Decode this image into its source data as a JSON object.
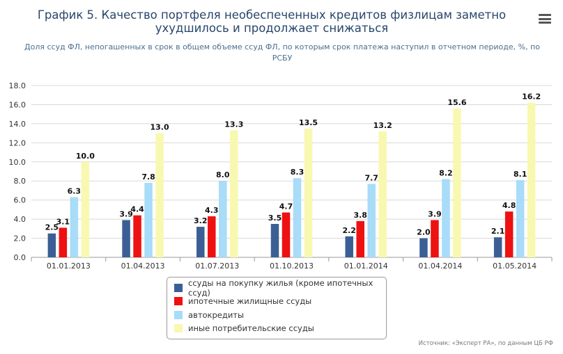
{
  "title": "График 5. Качество портфеля необеспеченных кредитов физлицам заметно ухудшилось и продолжает снижаться",
  "subtitle": "Доля ссуд ФЛ, непогашенных в срок в общем объеме ссуд ФЛ, по которым срок платежа наступил в отчетном периоде, %, по РСБУ",
  "menu_icon": "hamburger-menu-icon",
  "credit": "Источник: «Эксперт РА», по данным ЦБ РФ",
  "chart_data": {
    "type": "bar",
    "title": "",
    "xlabel": "",
    "ylabel": "",
    "ylim": [
      0,
      18
    ],
    "yticks": [
      "0.0",
      "2.0",
      "4.0",
      "6.0",
      "8.0",
      "10.0",
      "12.0",
      "14.0",
      "16.0",
      "18.0"
    ],
    "grid": true,
    "legend_position": "bottom",
    "categories": [
      "01.01.2013",
      "01.04.2013",
      "01.07.2013",
      "01.10.2013",
      "01.01.2014",
      "01.04.2014",
      "01.05.2014"
    ],
    "series": [
      {
        "name": "ссуды на покупку жилья (кроме ипотечных ссуд)",
        "color": "#3b5f95",
        "values": [
          2.5,
          3.9,
          3.2,
          3.5,
          2.2,
          2.0,
          2.1
        ],
        "labels": [
          "2.5",
          "3.9",
          "3.2",
          "3.5",
          "2.2",
          "2.0",
          "2.1"
        ]
      },
      {
        "name": "ипотечные жилищные ссуды",
        "color": "#ee1111",
        "values": [
          3.1,
          4.4,
          4.3,
          4.7,
          3.8,
          3.9,
          4.8
        ],
        "labels": [
          "3.1",
          "4.4",
          "4.3",
          "4.7",
          "3.8",
          "3.9",
          "4.8"
        ]
      },
      {
        "name": "автокредиты",
        "color": "#a8dcf8",
        "values": [
          6.3,
          7.8,
          8.0,
          8.3,
          7.7,
          8.2,
          8.1
        ],
        "labels": [
          "6.3",
          "7.8",
          "8.0",
          "8.3",
          "7.7",
          "8.2",
          "8.1"
        ]
      },
      {
        "name": "иные потребительские ссуды",
        "color": "#f8f8b0",
        "values": [
          10.0,
          13.0,
          13.3,
          13.5,
          13.2,
          15.6,
          16.2
        ],
        "labels": [
          "10.0",
          "13.0",
          "13.3",
          "13.5",
          "13.2",
          "15.6",
          "16.2"
        ]
      }
    ]
  }
}
